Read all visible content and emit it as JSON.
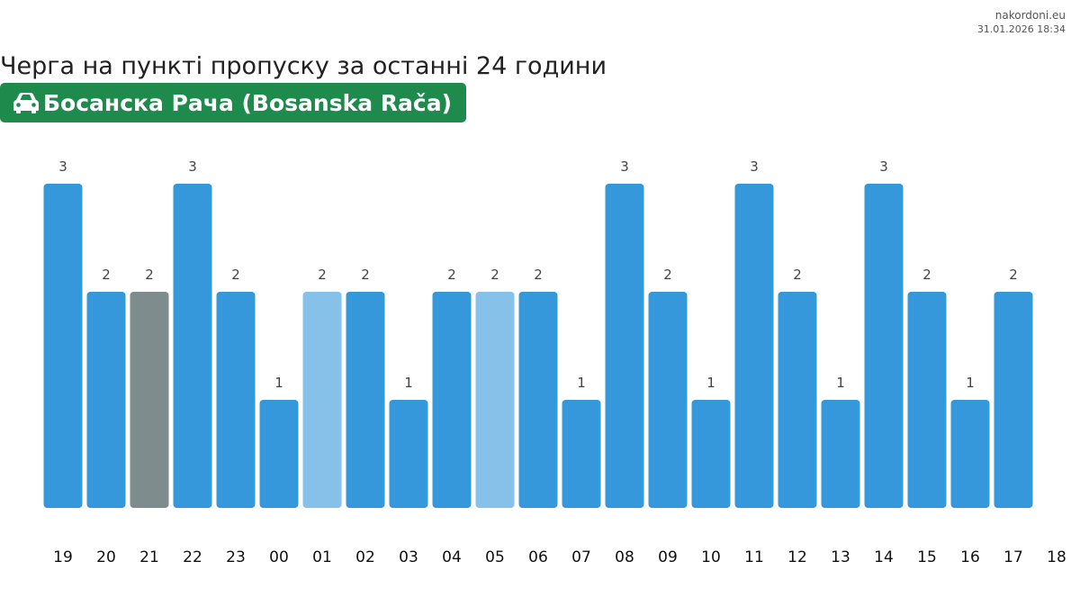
{
  "source": {
    "site": "nakordoni.eu",
    "timestamp": "31.01.2026 18:34"
  },
  "header": {
    "title": "Черга на пункті пропуску за останні 24 години",
    "checkpoint": "Босанска Рача (Bosanska Rača)",
    "checkpoint_icon": "car-icon",
    "badge_color": "#1e8a4c"
  },
  "chart_data": {
    "type": "bar",
    "categories": [
      "19",
      "20",
      "21",
      "22",
      "23",
      "00",
      "01",
      "02",
      "03",
      "04",
      "05",
      "06",
      "07",
      "08",
      "09",
      "10",
      "11",
      "12",
      "13",
      "14",
      "15",
      "16",
      "17"
    ],
    "extra_tick": "18",
    "values": [
      3,
      2,
      2,
      3,
      2,
      1,
      2,
      2,
      1,
      2,
      2,
      2,
      1,
      3,
      2,
      1,
      3,
      2,
      1,
      3,
      2,
      1,
      2
    ],
    "bar_states": [
      "normal",
      "normal",
      "current",
      "normal",
      "normal",
      "normal",
      "light",
      "normal",
      "normal",
      "normal",
      "light",
      "normal",
      "normal",
      "normal",
      "normal",
      "normal",
      "normal",
      "normal",
      "normal",
      "normal",
      "normal",
      "normal",
      "normal"
    ],
    "colors": {
      "normal": "#3498db",
      "light": "#85c1e9",
      "current": "#7f8c8d"
    },
    "ylim": [
      0,
      3
    ],
    "title": "",
    "xlabel": "",
    "ylabel": "",
    "grid": false,
    "legend": "none"
  }
}
